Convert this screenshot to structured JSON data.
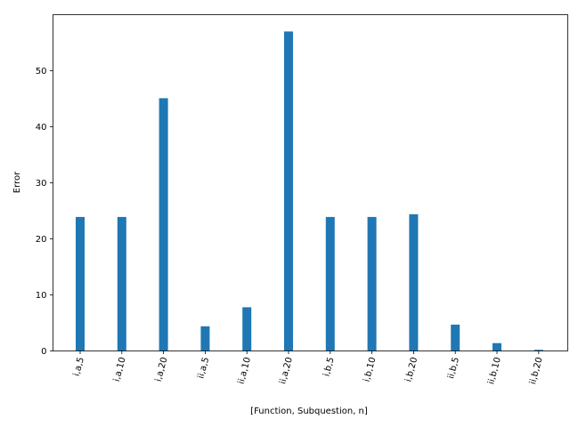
{
  "chart_data": {
    "type": "bar",
    "xlabel": "[Function, Subquestion, n]",
    "ylabel": "Error",
    "categories": [
      "i,a,5",
      "i,a,10",
      "i,a,20",
      "ii,a,5",
      "ii,a,10",
      "ii,a,20",
      "i,b,5",
      "i,b,10",
      "i,b,20",
      "ii,b,5",
      "ii,b,10",
      "ii,b,20"
    ],
    "values": [
      23.9,
      23.9,
      45.1,
      4.4,
      7.8,
      57.0,
      23.9,
      23.9,
      24.4,
      4.7,
      1.4,
      0.2
    ],
    "yticks": [
      0,
      10,
      20,
      30,
      40,
      50
    ],
    "ylim": [
      0,
      60
    ],
    "bar_color": "#1f77b4",
    "grid": false,
    "legend": "none"
  }
}
